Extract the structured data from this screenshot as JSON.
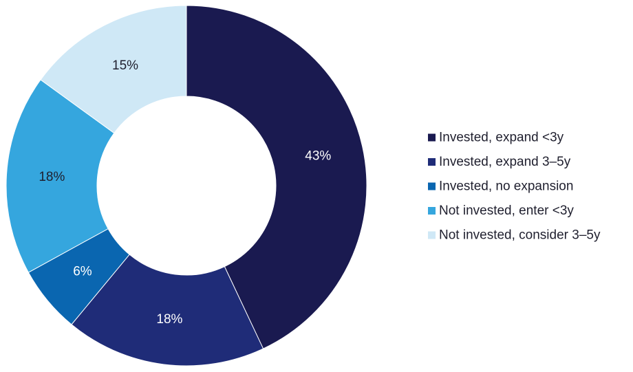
{
  "chart_data": {
    "type": "pie",
    "donut": true,
    "start_angle_deg": 0,
    "direction": "clockwise",
    "legend_position": "right",
    "title": "",
    "slices": [
      {
        "name": "Invested, expand <3y",
        "value": 43,
        "label": "43%",
        "color": "#1a1a50",
        "label_color": "#ffffff"
      },
      {
        "name": "Invested, expand 3–5y",
        "value": 18,
        "label": "18%",
        "color": "#1f2c78",
        "label_color": "#ffffff"
      },
      {
        "name": "Invested, no expansion",
        "value": 6,
        "label": "6%",
        "color": "#0a66b0",
        "label_color": "#ffffff"
      },
      {
        "name": "Not invested, enter <3y",
        "value": 18,
        "label": "18%",
        "color": "#35a6de",
        "label_color": "#1f1f2e"
      },
      {
        "name": "Not invested, consider 3–5y",
        "value": 15,
        "label": "15%",
        "color": "#cfe8f6",
        "label_color": "#1f1f2e"
      }
    ]
  }
}
